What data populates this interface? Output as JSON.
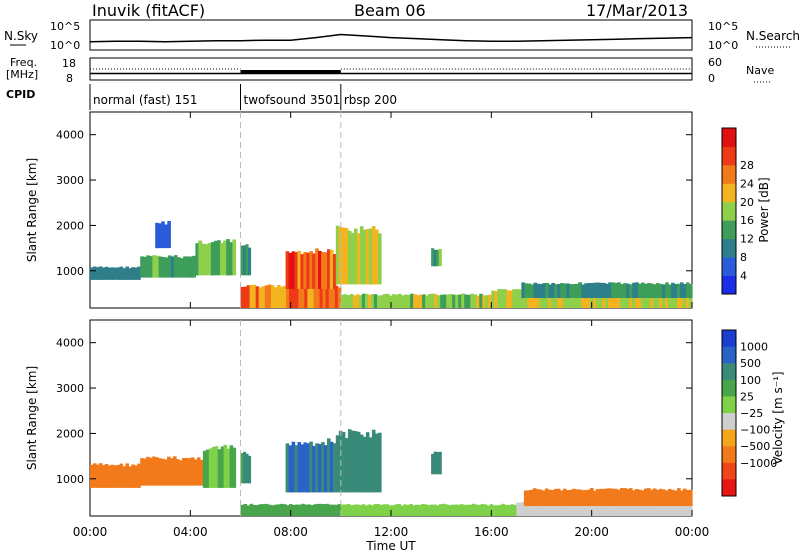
{
  "header": {
    "station": "Inuvik (fitACF)",
    "beam": "Beam 06",
    "date": "17/Mar/2013"
  },
  "labels": {
    "nsky": "N.Sky",
    "nsearch": "N.Search",
    "freq": "Freq.",
    "mhz": "[MHz]",
    "nave": "Nave",
    "cpid": "CPID"
  },
  "chart_data": [
    {
      "type": "line",
      "panel": "noise",
      "left_ticks": [
        "10^5",
        "10^0"
      ],
      "right_ticks": [
        "10^5",
        "10^0"
      ],
      "left_label": "N.Sky",
      "right_label": "N.Search",
      "x": [
        0,
        1,
        2,
        3,
        4,
        5,
        6,
        7,
        8,
        9,
        10,
        11,
        12,
        13,
        14,
        15,
        16,
        17,
        18,
        19,
        20,
        21,
        22,
        23,
        24
      ],
      "log10_sky": [
        1.2,
        1.3,
        1.3,
        1.2,
        1.3,
        1.4,
        1.4,
        1.5,
        1.5,
        2.0,
        2.6,
        2.3,
        2.0,
        1.8,
        1.6,
        1.4,
        1.3,
        1.3,
        1.4,
        1.5,
        1.6,
        1.7,
        1.8,
        1.9,
        2.0
      ]
    },
    {
      "type": "line",
      "panel": "frequency_nave",
      "left_ticks": [
        "18",
        "8"
      ],
      "right_ticks": [
        "60",
        "0"
      ],
      "freq_mhz": [
        {
          "start": 0,
          "end": 6,
          "value": 10.5
        },
        {
          "start": 6,
          "end": 10,
          "value": 10.5
        },
        {
          "start": 10,
          "end": 24,
          "value": 10.5
        }
      ],
      "nave": [
        {
          "start": 0,
          "end": 6,
          "value": 30
        },
        {
          "start": 6,
          "end": 10,
          "value": 20
        },
        {
          "start": 10,
          "end": 24,
          "value": 30
        }
      ]
    },
    {
      "type": "table",
      "panel": "cpid",
      "segments": [
        {
          "start": 0,
          "end": 6,
          "label": "normal (fast) 151"
        },
        {
          "start": 6,
          "end": 10,
          "label": "twofsound 3501"
        },
        {
          "start": 10,
          "end": 24,
          "label": "rbsp 200"
        }
      ]
    },
    {
      "type": "heatmap",
      "panel": "power",
      "ylabel": "Slant Range [km]",
      "xlim": [
        0,
        24
      ],
      "ylim": [
        180,
        4500
      ],
      "yticks": [
        1000,
        2000,
        3000,
        4000
      ],
      "colorbar_label": "Power [dB]",
      "colorbar_ticks": [
        "4",
        "8",
        "12",
        "16",
        "20",
        "24",
        "28"
      ],
      "colorbar_colors": [
        "#1a2ee8",
        "#2a5bd9",
        "#2f7f8a",
        "#3d9e5a",
        "#8fd04a",
        "#f2b41f",
        "#f27a1a",
        "#ee3a16",
        "#e11111"
      ],
      "cells": [
        {
          "t0": 0.0,
          "t1": 2.0,
          "r0": 800,
          "r1": 1100,
          "v": 10
        },
        {
          "t0": 2.0,
          "t1": 4.2,
          "r0": 850,
          "r1": 1350,
          "v": 14
        },
        {
          "t0": 4.2,
          "t1": 5.8,
          "r0": 900,
          "r1": 1700,
          "v": 16
        },
        {
          "t0": 2.6,
          "t1": 3.2,
          "r0": 1500,
          "r1": 2100,
          "v": 6
        },
        {
          "t0": 6.0,
          "t1": 10.0,
          "r0": 180,
          "r1": 700,
          "v": 26
        },
        {
          "t0": 7.8,
          "t1": 9.8,
          "r0": 600,
          "r1": 1500,
          "v": 28
        },
        {
          "t0": 9.8,
          "t1": 11.6,
          "r0": 700,
          "r1": 2000,
          "v": 20
        },
        {
          "t0": 6.0,
          "t1": 6.4,
          "r0": 900,
          "r1": 1600,
          "v": 14
        },
        {
          "t0": 10.0,
          "t1": 16.0,
          "r0": 180,
          "r1": 500,
          "v": 18
        },
        {
          "t0": 13.6,
          "t1": 14.0,
          "r0": 1100,
          "r1": 1500,
          "v": 14
        },
        {
          "t0": 16.0,
          "t1": 24.0,
          "r0": 180,
          "r1": 600,
          "v": 20
        },
        {
          "t0": 17.2,
          "t1": 24.0,
          "r0": 400,
          "r1": 750,
          "v": 12
        }
      ]
    },
    {
      "type": "heatmap",
      "panel": "velocity",
      "xlabel": "Time UT",
      "ylabel": "Slant Range [km]",
      "xlim": [
        0,
        24
      ],
      "ylim": [
        180,
        4500
      ],
      "xticks": [
        "00:00",
        "04:00",
        "08:00",
        "12:00",
        "16:00",
        "20:00",
        "00:00"
      ],
      "yticks": [
        1000,
        2000,
        3000,
        4000
      ],
      "colorbar_label": "Velocity [m s⁻¹]",
      "colorbar_ticks": [
        "1000",
        "500",
        "100",
        "25",
        "−25",
        "−100",
        "−500",
        "−1000"
      ],
      "colorbar_colors": [
        "#1a3fd0",
        "#2a62c8",
        "#3a8a7a",
        "#48a54a",
        "#7fd14a",
        "#cfcfcf",
        "#f5a51a",
        "#f27a1a",
        "#ef4518",
        "#e81515"
      ],
      "cells": [
        {
          "t0": 0.0,
          "t1": 2.0,
          "r0": 800,
          "r1": 1350,
          "v": -200
        },
        {
          "t0": 2.0,
          "t1": 4.5,
          "r0": 850,
          "r1": 1500,
          "v": -300
        },
        {
          "t0": 4.5,
          "t1": 5.8,
          "r0": 800,
          "r1": 1750,
          "v": 100
        },
        {
          "t0": 6.0,
          "t1": 10.0,
          "r0": 180,
          "r1": 450,
          "v": 150
        },
        {
          "t0": 7.8,
          "t1": 9.8,
          "r0": 700,
          "r1": 1900,
          "v": 1000
        },
        {
          "t0": 9.8,
          "t1": 11.6,
          "r0": 700,
          "r1": 2100,
          "v": 800
        },
        {
          "t0": 6.0,
          "t1": 6.4,
          "r0": 900,
          "r1": 1600,
          "v": 600
        },
        {
          "t0": 10.0,
          "t1": 17.0,
          "r0": 180,
          "r1": 450,
          "v": 50
        },
        {
          "t0": 13.6,
          "t1": 14.0,
          "r0": 1100,
          "r1": 1600,
          "v": 800
        },
        {
          "t0": 17.0,
          "t1": 24.0,
          "r0": 180,
          "r1": 500,
          "v": 0
        },
        {
          "t0": 17.3,
          "t1": 24.0,
          "r0": 400,
          "r1": 800,
          "v": -200
        }
      ]
    }
  ]
}
